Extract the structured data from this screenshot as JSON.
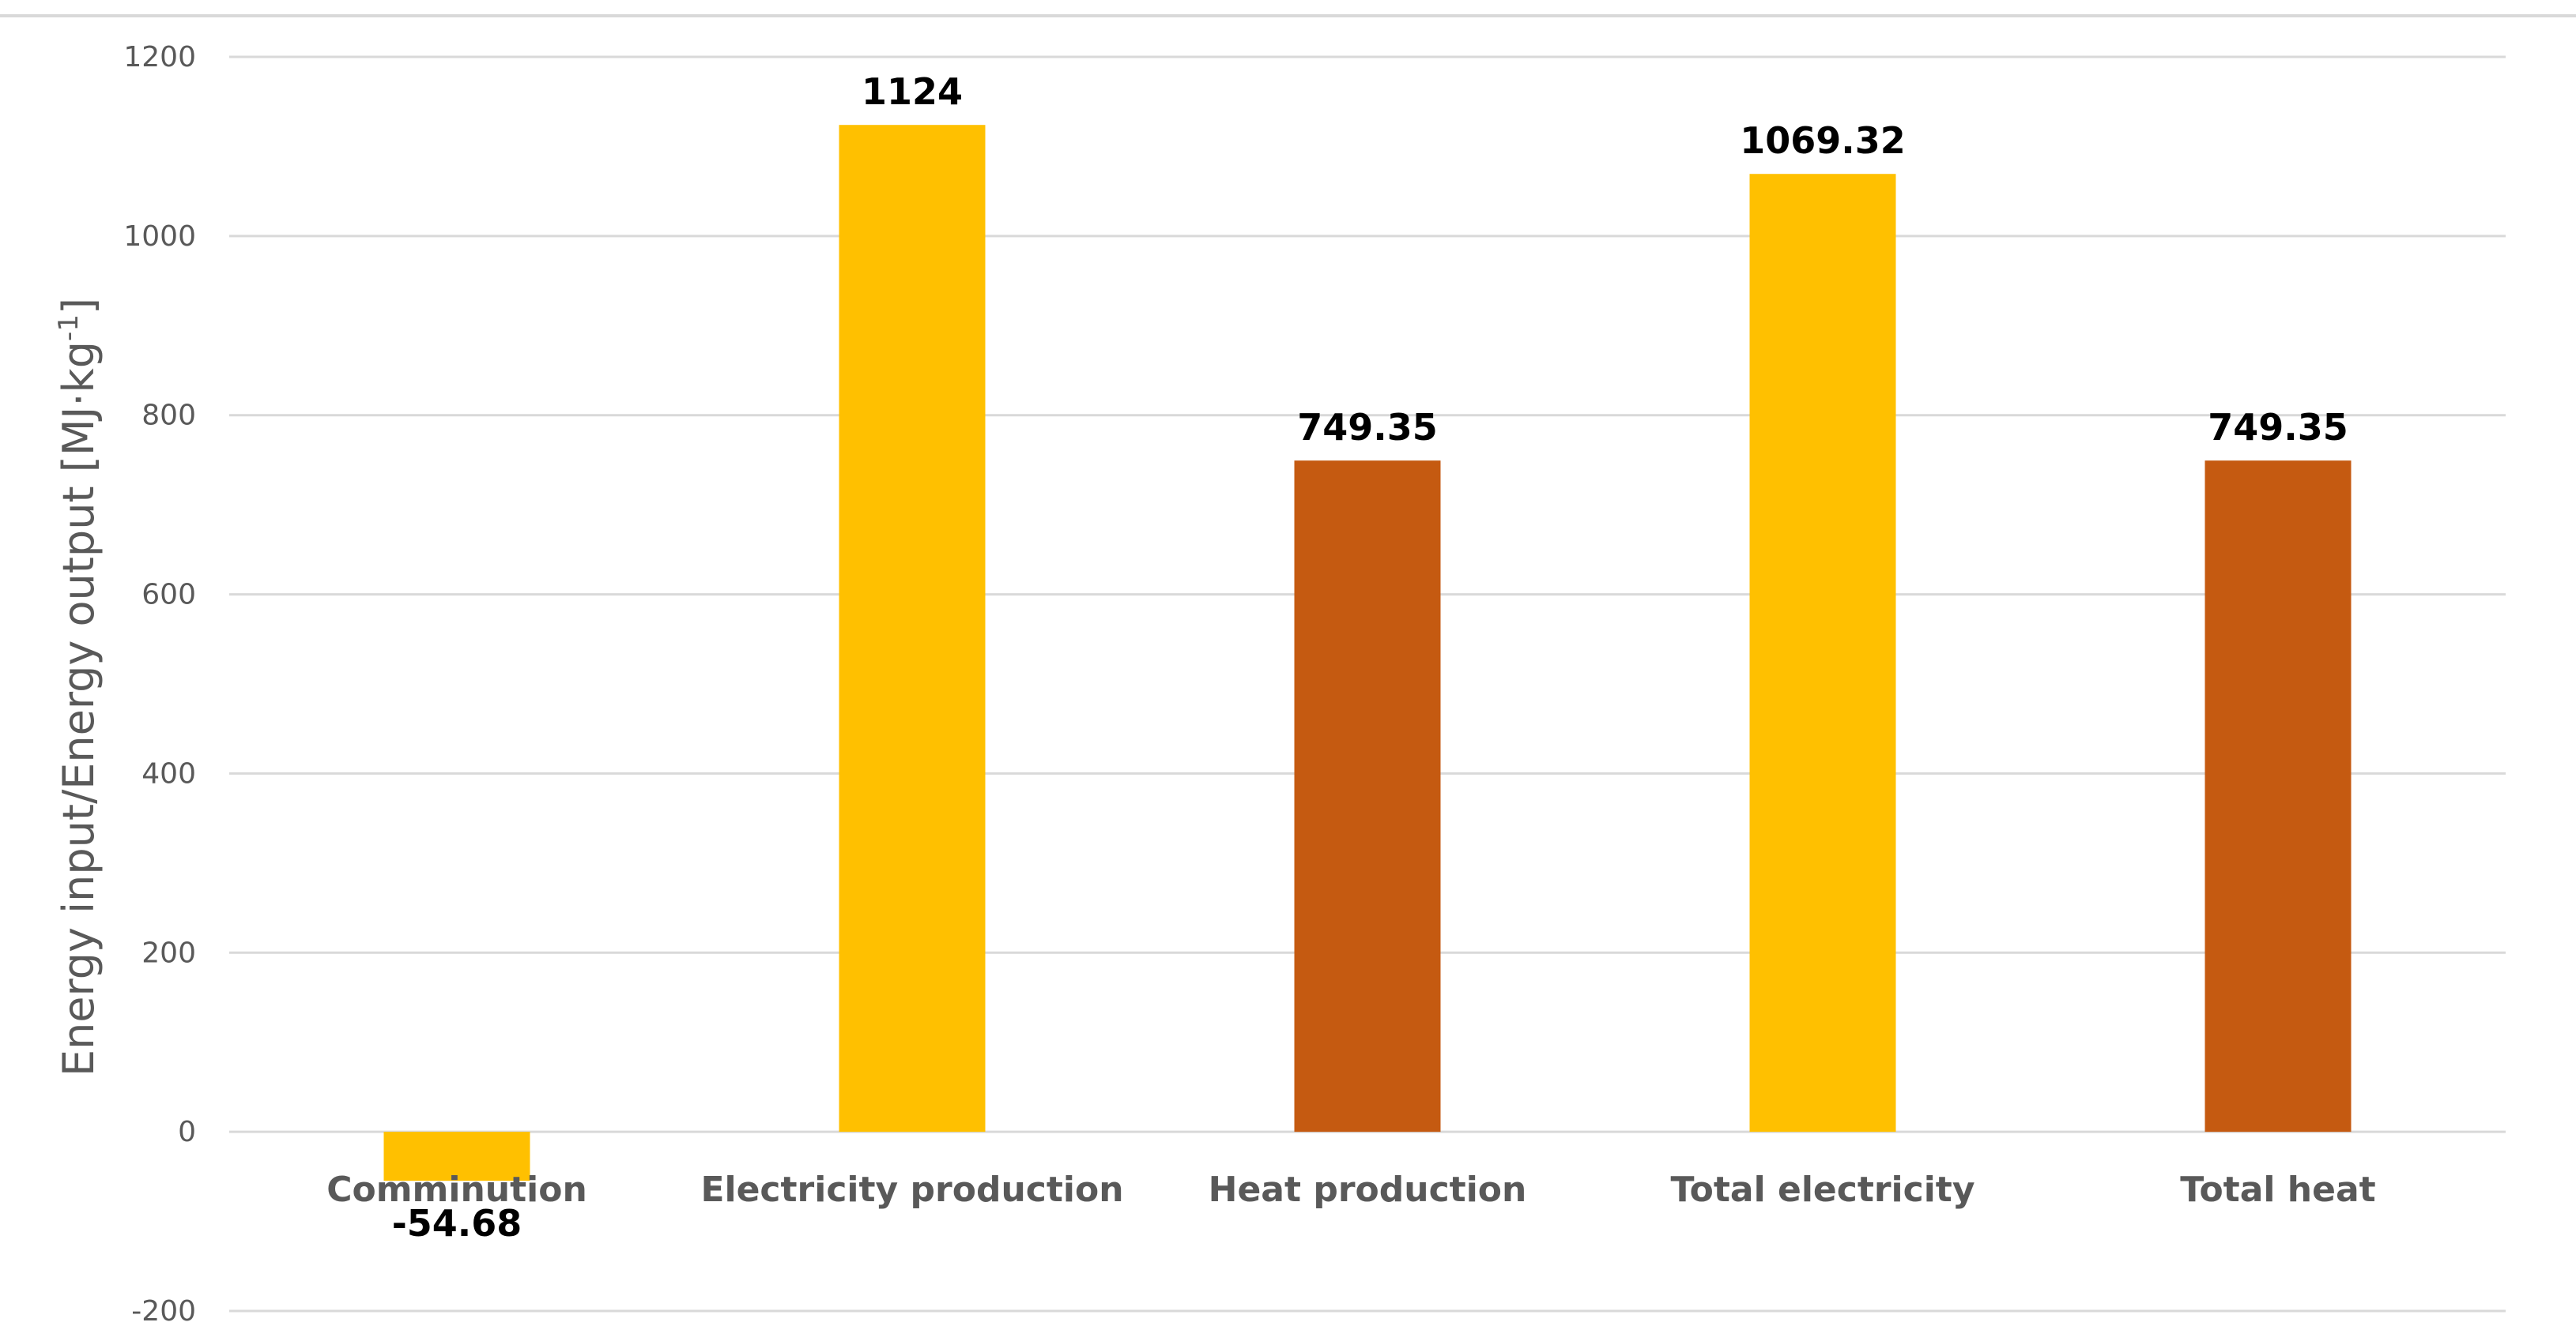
{
  "chart_data": {
    "type": "bar",
    "title": "",
    "xlabel": "",
    "ylabel": "Energy input/Energy output [MJ·kg",
    "ylabel_superscript": "-1",
    "ylabel_suffix": "]",
    "ylim": [
      -200,
      1200
    ],
    "yticks": [
      -200,
      0,
      200,
      400,
      600,
      800,
      1000,
      1200
    ],
    "ytick_labels": [
      "-200",
      "0",
      "200",
      "400",
      "600",
      "800",
      "1000",
      "1200"
    ],
    "grid": true,
    "categories": [
      "Comminution",
      "Electricity production",
      "Heat production",
      "Total electricity",
      "Total heat"
    ],
    "values": [
      -54.68,
      1124,
      749.35,
      1069.32,
      749.35
    ],
    "data_labels": [
      "-54.68",
      "1124",
      "749.35",
      "1069.32",
      "749.35"
    ],
    "colors": [
      "#FFC000",
      "#FFC000",
      "#C55A11",
      "#FFC000",
      "#C55A11"
    ]
  }
}
